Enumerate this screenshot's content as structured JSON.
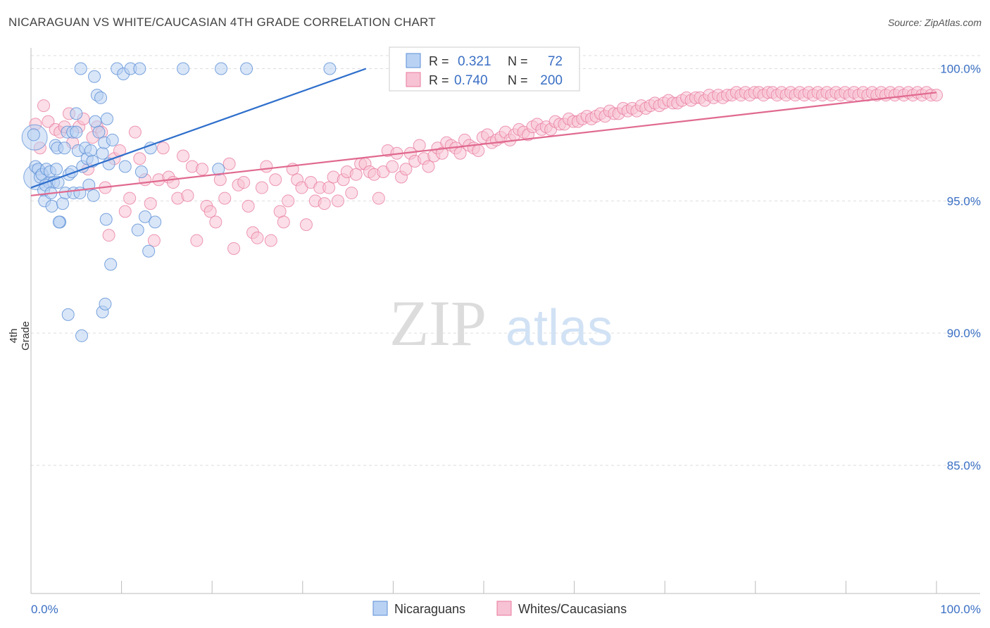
{
  "title": "NICARAGUAN VS WHITE/CAUCASIAN 4TH GRADE CORRELATION CHART",
  "source": "Source: ZipAtlas.com",
  "watermark": {
    "zip": "ZIP",
    "atlas": "atlas"
  },
  "colors": {
    "blue": "#5b8fd6",
    "blue_fill": "#b9d2f3",
    "blue_line": "#2f6fcc",
    "pink": "#e8789c",
    "pink_fill": "#f7c2d3",
    "pink_line": "#e0698f",
    "axis_text": "#3a6fc4",
    "grid": "#dddddd"
  },
  "legend_box": {
    "rows": [
      {
        "r_label": "R =",
        "r_value": "0.321",
        "n_label": "N =",
        "n_value": "72"
      },
      {
        "r_label": "R =",
        "r_value": "0.740",
        "n_label": "N =",
        "n_value": "200"
      }
    ]
  },
  "bottom_legend": [
    "Nicaraguans",
    "Whites/Caucasians"
  ],
  "chart_data": {
    "type": "scatter",
    "title": "NICARAGUAN VS WHITE/CAUCASIAN 4TH GRADE CORRELATION CHART",
    "xlabel": "",
    "ylabel": "4th Grade",
    "xlim": [
      0,
      100
    ],
    "ylim": [
      80.5,
      100.5
    ],
    "x_tick_labels": [
      "0.0%",
      "100.0%"
    ],
    "y_ticks": [
      100,
      95,
      90,
      85
    ],
    "y_tick_labels": [
      "100.0%",
      "95.0%",
      "90.0%",
      "85.0%"
    ],
    "grid": true,
    "legend": "bottom-center",
    "series": [
      {
        "name": "Nicaraguans",
        "R": 0.321,
        "N": 72,
        "trend": {
          "x": [
            0,
            37
          ],
          "y": [
            95.5,
            100.0
          ]
        },
        "points": [
          [
            0.3,
            97.5
          ],
          [
            0.5,
            96.3
          ],
          [
            0.8,
            96.2
          ],
          [
            1.0,
            95.9
          ],
          [
            1.2,
            96.0
          ],
          [
            1.4,
            95.4
          ],
          [
            1.5,
            95.0
          ],
          [
            1.7,
            96.2
          ],
          [
            2.0,
            95.7
          ],
          [
            2.1,
            96.1
          ],
          [
            2.3,
            94.8
          ],
          [
            2.5,
            95.7
          ],
          [
            2.7,
            97.1
          ],
          [
            2.9,
            97.0
          ],
          [
            3.0,
            95.7
          ],
          [
            3.2,
            94.2
          ],
          [
            3.5,
            94.9
          ],
          [
            3.7,
            97.0
          ],
          [
            3.8,
            95.3
          ],
          [
            4.0,
            97.6
          ],
          [
            4.2,
            96.0
          ],
          [
            4.5,
            96.1
          ],
          [
            4.7,
            95.3
          ],
          [
            5.0,
            98.3
          ],
          [
            5.2,
            96.9
          ],
          [
            5.4,
            95.3
          ],
          [
            5.5,
            100.0
          ],
          [
            5.7,
            96.3
          ],
          [
            6.0,
            97.0
          ],
          [
            6.2,
            96.6
          ],
          [
            6.4,
            95.6
          ],
          [
            6.6,
            96.9
          ],
          [
            6.9,
            95.2
          ],
          [
            7.0,
            99.7
          ],
          [
            7.1,
            98.0
          ],
          [
            7.3,
            99.0
          ],
          [
            7.5,
            97.6
          ],
          [
            7.7,
            98.9
          ],
          [
            7.9,
            96.8
          ],
          [
            8.1,
            97.2
          ],
          [
            8.3,
            94.3
          ],
          [
            8.4,
            98.1
          ],
          [
            8.6,
            96.4
          ],
          [
            8.8,
            92.6
          ],
          [
            9.0,
            97.3
          ],
          [
            9.5,
            100.0
          ],
          [
            10.2,
            99.8
          ],
          [
            10.4,
            96.3
          ],
          [
            11.0,
            100.0
          ],
          [
            11.8,
            93.9
          ],
          [
            12.0,
            100.0
          ],
          [
            12.2,
            96.1
          ],
          [
            12.6,
            94.4
          ],
          [
            13.0,
            93.1
          ],
          [
            13.2,
            97.0
          ],
          [
            13.7,
            94.2
          ],
          [
            2.8,
            96.2
          ],
          [
            4.6,
            97.6
          ],
          [
            3.1,
            94.2
          ],
          [
            4.1,
            90.7
          ],
          [
            5.6,
            89.9
          ],
          [
            7.9,
            90.8
          ],
          [
            8.2,
            91.1
          ],
          [
            16.8,
            100.0
          ],
          [
            21.0,
            100.0
          ],
          [
            23.8,
            100.0
          ],
          [
            33.0,
            100.0
          ],
          [
            20.7,
            96.2
          ],
          [
            1.6,
            95.6
          ],
          [
            2.2,
            95.3
          ],
          [
            6.8,
            96.5
          ],
          [
            5.0,
            97.6
          ]
        ],
        "big_points": [
          [
            0.4,
            97.4
          ],
          [
            0.6,
            95.9
          ]
        ]
      },
      {
        "name": "Whites/Caucasians",
        "R": 0.74,
        "N": 200,
        "trend": {
          "x": [
            0,
            100
          ],
          "y": [
            95.2,
            99.1
          ]
        },
        "points": [
          [
            0.5,
            97.9
          ],
          [
            1.0,
            97.0
          ],
          [
            1.4,
            98.6
          ],
          [
            1.9,
            98.0
          ],
          [
            2.7,
            97.7
          ],
          [
            3.2,
            97.6
          ],
          [
            3.7,
            97.8
          ],
          [
            4.2,
            98.3
          ],
          [
            4.6,
            97.2
          ],
          [
            5.3,
            97.8
          ],
          [
            5.8,
            98.1
          ],
          [
            6.3,
            96.2
          ],
          [
            6.8,
            97.4
          ],
          [
            7.3,
            97.8
          ],
          [
            7.8,
            97.6
          ],
          [
            8.2,
            95.5
          ],
          [
            8.6,
            93.7
          ],
          [
            9.2,
            96.6
          ],
          [
            9.8,
            96.9
          ],
          [
            10.4,
            94.6
          ],
          [
            10.9,
            95.1
          ],
          [
            11.5,
            97.6
          ],
          [
            12.0,
            96.6
          ],
          [
            12.6,
            95.8
          ],
          [
            13.2,
            94.9
          ],
          [
            13.6,
            93.5
          ],
          [
            14.1,
            95.8
          ],
          [
            14.6,
            97.0
          ],
          [
            15.2,
            95.9
          ],
          [
            15.7,
            95.7
          ],
          [
            16.2,
            95.1
          ],
          [
            16.8,
            96.7
          ],
          [
            17.3,
            95.2
          ],
          [
            17.8,
            96.3
          ],
          [
            18.3,
            93.5
          ],
          [
            18.9,
            96.2
          ],
          [
            19.4,
            94.8
          ],
          [
            19.8,
            94.6
          ],
          [
            20.4,
            94.2
          ],
          [
            20.9,
            95.8
          ],
          [
            21.4,
            95.1
          ],
          [
            21.9,
            96.4
          ],
          [
            22.4,
            93.2
          ],
          [
            22.9,
            95.6
          ],
          [
            23.5,
            95.7
          ],
          [
            24.0,
            94.8
          ],
          [
            24.5,
            93.8
          ],
          [
            25.0,
            93.6
          ],
          [
            25.5,
            95.5
          ],
          [
            26.0,
            96.3
          ],
          [
            26.5,
            93.5
          ],
          [
            27.0,
            95.8
          ],
          [
            27.5,
            94.6
          ],
          [
            27.9,
            94.2
          ],
          [
            28.4,
            95.0
          ],
          [
            28.9,
            96.2
          ],
          [
            29.4,
            95.8
          ],
          [
            29.9,
            95.5
          ],
          [
            30.4,
            94.1
          ],
          [
            30.9,
            95.7
          ],
          [
            31.4,
            95.0
          ],
          [
            31.9,
            95.5
          ],
          [
            32.4,
            94.9
          ],
          [
            32.9,
            95.5
          ],
          [
            33.4,
            95.9
          ],
          [
            33.9,
            95.0
          ],
          [
            34.5,
            95.8
          ],
          [
            34.9,
            96.1
          ],
          [
            35.4,
            95.3
          ],
          [
            35.9,
            96.0
          ],
          [
            36.4,
            96.4
          ],
          [
            36.9,
            96.4
          ],
          [
            37.4,
            96.1
          ],
          [
            37.9,
            96.0
          ],
          [
            38.4,
            95.1
          ],
          [
            38.9,
            96.1
          ],
          [
            39.4,
            96.9
          ],
          [
            39.9,
            96.3
          ],
          [
            40.4,
            96.8
          ],
          [
            40.9,
            95.9
          ],
          [
            41.4,
            96.2
          ],
          [
            41.9,
            96.8
          ],
          [
            42.4,
            96.5
          ],
          [
            42.9,
            97.1
          ],
          [
            43.4,
            96.6
          ],
          [
            43.9,
            96.3
          ],
          [
            44.5,
            96.7
          ],
          [
            44.9,
            97.0
          ],
          [
            45.4,
            96.8
          ],
          [
            45.9,
            97.2
          ],
          [
            46.4,
            97.1
          ],
          [
            46.9,
            97.0
          ],
          [
            47.4,
            96.8
          ],
          [
            47.9,
            97.3
          ],
          [
            48.4,
            97.1
          ],
          [
            48.9,
            97.0
          ],
          [
            49.4,
            96.9
          ],
          [
            49.9,
            97.4
          ],
          [
            50.4,
            97.5
          ],
          [
            50.9,
            97.2
          ],
          [
            51.4,
            97.3
          ],
          [
            51.9,
            97.4
          ],
          [
            52.4,
            97.6
          ],
          [
            52.9,
            97.3
          ],
          [
            53.4,
            97.5
          ],
          [
            53.9,
            97.7
          ],
          [
            54.4,
            97.6
          ],
          [
            54.9,
            97.5
          ],
          [
            55.4,
            97.8
          ],
          [
            55.9,
            97.9
          ],
          [
            56.4,
            97.7
          ],
          [
            56.9,
            97.8
          ],
          [
            57.4,
            97.7
          ],
          [
            57.9,
            98.0
          ],
          [
            58.4,
            97.9
          ],
          [
            58.9,
            97.9
          ],
          [
            59.4,
            98.1
          ],
          [
            59.9,
            98.0
          ],
          [
            60.4,
            98.0
          ],
          [
            60.9,
            98.1
          ],
          [
            61.4,
            98.2
          ],
          [
            61.9,
            98.1
          ],
          [
            62.4,
            98.2
          ],
          [
            62.9,
            98.3
          ],
          [
            63.4,
            98.2
          ],
          [
            63.9,
            98.4
          ],
          [
            64.4,
            98.3
          ],
          [
            64.9,
            98.3
          ],
          [
            65.4,
            98.5
          ],
          [
            65.9,
            98.4
          ],
          [
            66.4,
            98.5
          ],
          [
            66.9,
            98.4
          ],
          [
            67.4,
            98.6
          ],
          [
            67.9,
            98.5
          ],
          [
            68.4,
            98.6
          ],
          [
            68.9,
            98.7
          ],
          [
            69.4,
            98.6
          ],
          [
            69.9,
            98.7
          ],
          [
            70.4,
            98.8
          ],
          [
            70.9,
            98.7
          ],
          [
            71.4,
            98.7
          ],
          [
            71.9,
            98.8
          ],
          [
            72.4,
            98.9
          ],
          [
            72.9,
            98.8
          ],
          [
            73.4,
            98.9
          ],
          [
            73.9,
            98.9
          ],
          [
            74.4,
            98.8
          ],
          [
            74.9,
            99.0
          ],
          [
            75.4,
            98.9
          ],
          [
            75.9,
            99.0
          ],
          [
            76.4,
            98.9
          ],
          [
            76.9,
            99.0
          ],
          [
            77.4,
            99.0
          ],
          [
            77.9,
            99.1
          ],
          [
            78.4,
            99.0
          ],
          [
            78.9,
            99.1
          ],
          [
            79.4,
            99.0
          ],
          [
            79.9,
            99.1
          ],
          [
            80.4,
            99.1
          ],
          [
            80.9,
            99.0
          ],
          [
            81.4,
            99.1
          ],
          [
            81.9,
            99.1
          ],
          [
            82.4,
            99.0
          ],
          [
            82.9,
            99.1
          ],
          [
            83.4,
            99.0
          ],
          [
            83.9,
            99.1
          ],
          [
            84.4,
            99.0
          ],
          [
            84.9,
            99.1
          ],
          [
            85.4,
            99.0
          ],
          [
            85.9,
            99.1
          ],
          [
            86.4,
            99.0
          ],
          [
            86.9,
            99.1
          ],
          [
            87.4,
            99.0
          ],
          [
            87.9,
            99.1
          ],
          [
            88.4,
            99.0
          ],
          [
            88.9,
            99.1
          ],
          [
            89.4,
            99.0
          ],
          [
            89.9,
            99.1
          ],
          [
            90.4,
            99.0
          ],
          [
            90.9,
            99.1
          ],
          [
            91.4,
            99.0
          ],
          [
            91.9,
            99.1
          ],
          [
            92.4,
            99.0
          ],
          [
            92.9,
            99.1
          ],
          [
            93.4,
            99.0
          ],
          [
            93.9,
            99.1
          ],
          [
            94.4,
            99.0
          ],
          [
            94.9,
            99.1
          ],
          [
            95.4,
            99.0
          ],
          [
            95.9,
            99.1
          ],
          [
            96.4,
            99.0
          ],
          [
            96.9,
            99.1
          ],
          [
            97.4,
            99.0
          ],
          [
            97.9,
            99.1
          ],
          [
            98.4,
            99.0
          ],
          [
            98.9,
            99.1
          ],
          [
            99.4,
            99.0
          ],
          [
            100.0,
            99.0
          ]
        ]
      }
    ]
  }
}
